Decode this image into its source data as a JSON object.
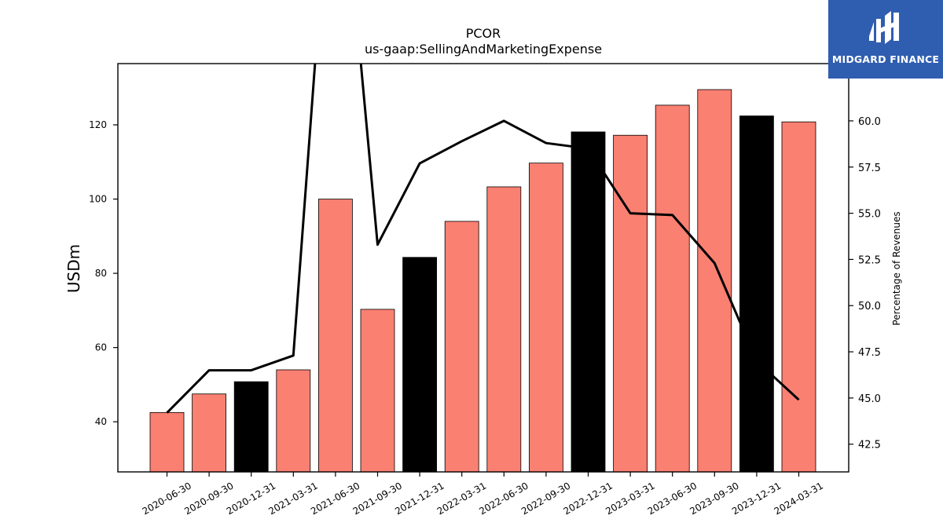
{
  "chart_data": {
    "type": "bar",
    "title": "PCOR",
    "subtitle": "us-gaap:SellingAndMarketingExpense",
    "ylabel": "USDm",
    "y2label": "Percentage of Revenues",
    "ylim": [
      26.5,
      136.5
    ],
    "y2lim": [
      41.0,
      63.1
    ],
    "yticks": [
      40,
      60,
      80,
      100,
      120
    ],
    "y2ticks": [
      42.5,
      45.0,
      47.5,
      50.0,
      52.5,
      55.0,
      57.5,
      60.0,
      62.5
    ],
    "categories": [
      "2020-06-30",
      "2020-09-30",
      "2020-12-31",
      "2021-03-31",
      "2021-06-30",
      "2021-09-30",
      "2021-12-31",
      "2022-03-31",
      "2022-06-30",
      "2022-09-30",
      "2022-12-31",
      "2023-03-31",
      "2023-06-30",
      "2023-09-30",
      "2023-12-31",
      "2024-03-31"
    ],
    "series": [
      {
        "type": "bar",
        "values": [
          42.5,
          47.5,
          50.8,
          54.0,
          100.0,
          70.3,
          84.3,
          94.0,
          103.3,
          109.7,
          118.1,
          117.2,
          125.3,
          129.5,
          122.4,
          120.8
        ]
      },
      {
        "type": "line",
        "axis": "right",
        "values": [
          44.2,
          46.5,
          46.5,
          47.3,
          78.0,
          53.3,
          57.7,
          58.9,
          60.0,
          58.8,
          58.5,
          55.0,
          54.9,
          52.3,
          47.0,
          44.9
        ]
      }
    ],
    "bar_colors": [
      "#fa8072",
      "#fa8072",
      "#000000",
      "#fa8072",
      "#fa8072",
      "#fa8072",
      "#000000",
      "#fa8072",
      "#fa8072",
      "#fa8072",
      "#000000",
      "#fa8072",
      "#fa8072",
      "#fa8072",
      "#000000",
      "#fa8072"
    ],
    "line_color": "#000000",
    "grid": false,
    "legend": "none"
  },
  "logo": {
    "text": "MIDGARD FINANCE",
    "background": "#2f5db0"
  }
}
